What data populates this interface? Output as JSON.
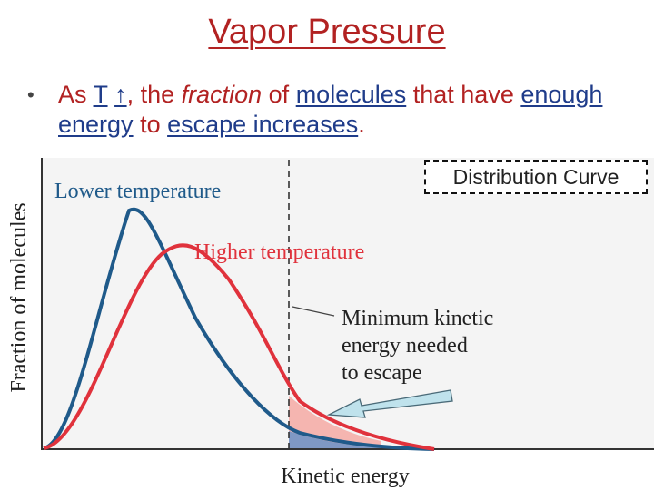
{
  "slide": {
    "title": "Vapor Pressure",
    "bullet": {
      "marker": "•",
      "p1": "As ",
      "t": "T",
      "p2": " ",
      "arrow": "↑",
      "p3": ", the ",
      "fraction": "fraction",
      "p4": " of ",
      "molecules": "molecules",
      "p5": " that have ",
      "enough_energy": "enough energy",
      "p6": " to ",
      "escape_increases": "escape increases",
      "p7": "."
    }
  },
  "diagram": {
    "y_axis_label": "Fraction of molecules",
    "x_axis_label": "Kinetic energy",
    "curve_lower_label": "Lower temperature",
    "curve_higher_label": "Higher temperature",
    "annotation_lines": [
      "Minimum kinetic",
      "energy needed",
      "to escape"
    ],
    "callout": "Distribution Curve",
    "colors": {
      "lower": "#1f5a8a",
      "higher": "#e0323c",
      "fill_higher": "#f5b5b0",
      "fill_lower": "#7f98c4",
      "title": "#b22222",
      "underline_words": "#1f3c8a"
    }
  }
}
